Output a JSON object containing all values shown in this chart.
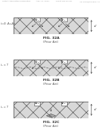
{
  "bg_color": "#ffffff",
  "header": "Patent Application Publication",
  "header_date": "Aug. 21, 2003",
  "header_sheet": "Sheet 186 of 191",
  "header_patent": "US 2003/0214001 A1",
  "panels": [
    {
      "label_left": "t=0: Av₀Av₀",
      "fig_label": "FIG. 32A",
      "fig_sublabel": "(Prior Art)",
      "dim_label": "d",
      "top_labels": [
        "Av₀₂",
        "Av₂₀"
      ],
      "has_wave": false,
      "has_crystal": false,
      "arrow_style": "v_spread"
    },
    {
      "label_left": "t₁ < T",
      "fig_label": "FIG. 32B",
      "fig_sublabel": "(Prior Art)",
      "dim_label": "d",
      "top_labels": [
        "Av₂₀",
        "Av₂₀"
      ],
      "has_wave": true,
      "has_crystal": false,
      "arrow_style": "v_spread"
    },
    {
      "label_left": "t₂ = T",
      "fig_label": "FIG. 32C",
      "fig_sublabel": "(Prior Art)",
      "dim_label": "d",
      "top_labels": [
        "Av₂₀",
        "Av₂₀"
      ],
      "has_wave": false,
      "has_crystal": true,
      "arrow_style": "down_crystal"
    }
  ],
  "rect_facecolor": "#d8d8d8",
  "rect_edgecolor": "#444444",
  "hatch": "xx",
  "hatch_color": "#999999"
}
